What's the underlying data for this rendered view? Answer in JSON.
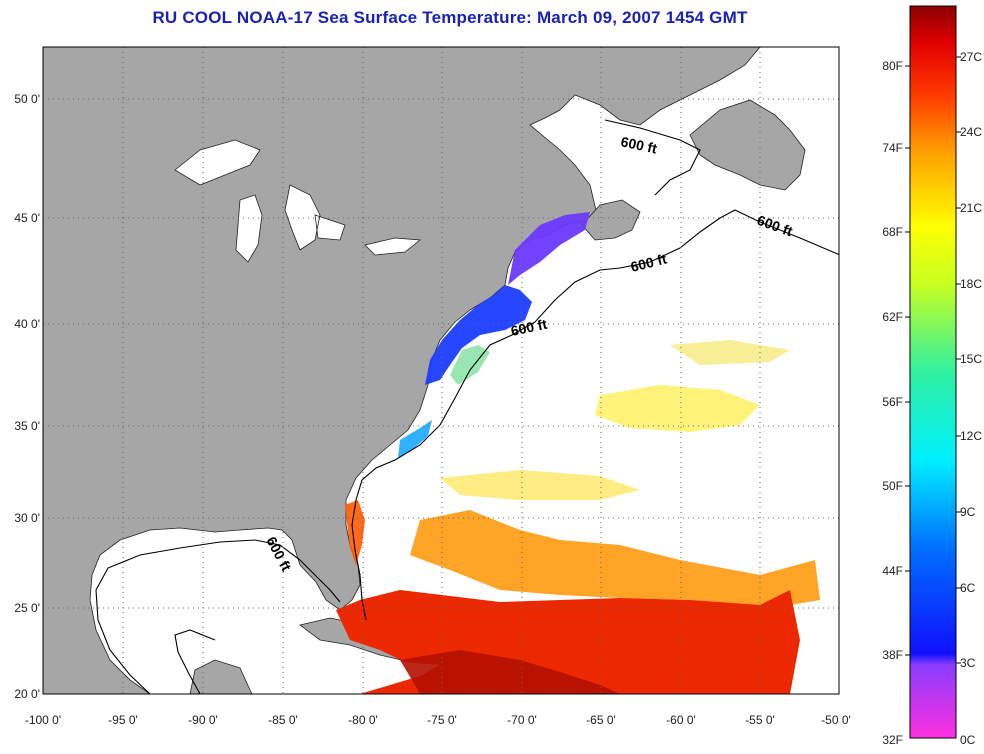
{
  "title": "RU COOL  NOAA-17  Sea Surface Temperature:  March 09, 2007 1454 GMT",
  "map": {
    "lon_ticks": [
      "-100 0'",
      "-95 0'",
      "-90 0'",
      "-85 0'",
      "-80 0'",
      "-75 0'",
      "-70 0'",
      "-65 0'",
      "-60 0'",
      "-55 0'",
      "-50 0'"
    ],
    "lat_ticks": [
      "50 0'",
      "45 0'",
      "40 0'",
      "35 0'",
      "30 0'",
      "25 0'",
      "20 0'"
    ],
    "contour_labels": [
      "600 ft",
      "600 ft",
      "600 ft",
      "600 ft",
      "600 ft"
    ],
    "colors": {
      "land": "#a6a6a6",
      "ocean": "#ffffff",
      "grid": "#666666"
    }
  },
  "colorbar": {
    "fahrenheit_labels": [
      "80F",
      "74F",
      "68F",
      "62F",
      "56F",
      "50F",
      "44F",
      "38F",
      "32F"
    ],
    "celsius_labels": [
      "27C",
      "24C",
      "21C",
      "18C",
      "15C",
      "12C",
      "9C",
      "6C",
      "3C",
      "0C"
    ]
  }
}
